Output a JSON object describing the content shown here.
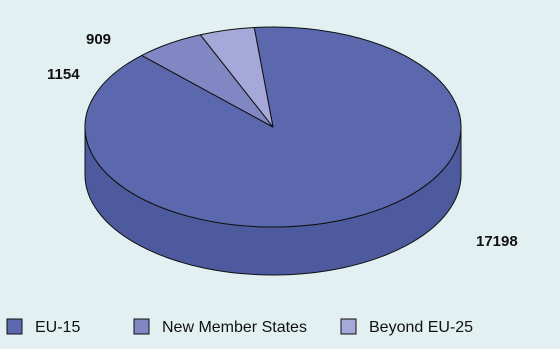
{
  "chart_data": {
    "type": "pie",
    "title": "",
    "categories": [
      "EU-15",
      "New Member States",
      "Beyond EU-25"
    ],
    "values": [
      17198,
      1154,
      909
    ],
    "data_labels": [
      "17198",
      "1154",
      "909"
    ],
    "legend": {
      "placement": "bottom",
      "entries": [
        "EU-15",
        "New Member States",
        "Beyond EU-25"
      ]
    },
    "style": "3d",
    "colors": {
      "EU-15": "#5b68ad",
      "New Member States": "#8087c2",
      "Beyond EU-25": "#a5a8d8"
    },
    "side_color": "#4d5a9e",
    "edge_color": "#111111",
    "background": "#e3f0f1"
  }
}
